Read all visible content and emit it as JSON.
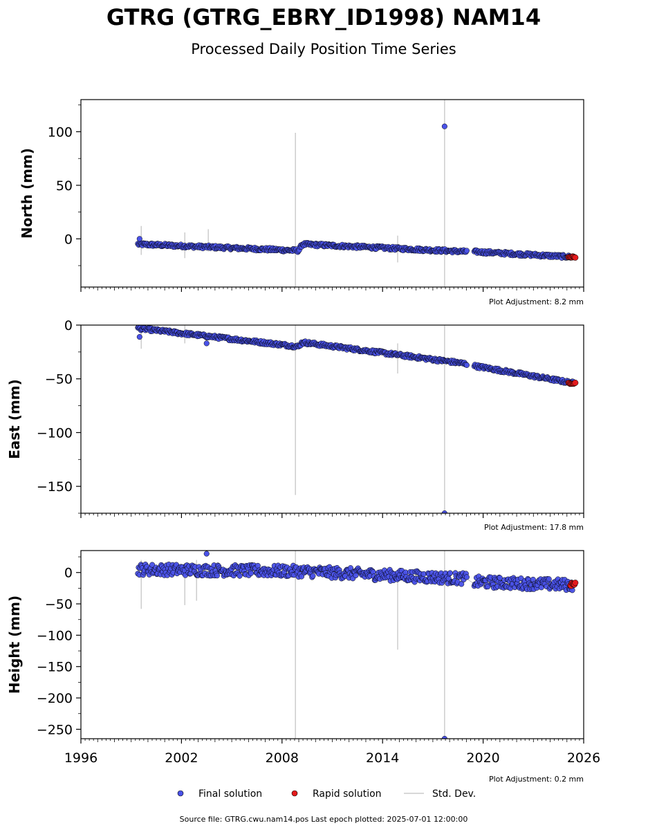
{
  "title": "GTRG (GTRG_EBRY_ID1998) NAM14",
  "subtitle": "Processed Daily Position Time Series",
  "source_text": "Source file: GTRG.cwu.nam14.pos  Last epoch plotted: 2025-07-01 12:00:00",
  "colors": {
    "final": "#4a52e8",
    "rapid": "#e41a1c",
    "stddev": "#cccccc",
    "marker_edge": "#000000"
  },
  "legend": {
    "position": "bottom-center",
    "items": [
      {
        "label": "Final solution",
        "color": "#4a52e8",
        "kind": "dot"
      },
      {
        "label": "Rapid solution",
        "color": "#e41a1c",
        "kind": "dot"
      },
      {
        "label": "Std. Dev.",
        "color": "#cccccc",
        "kind": "line"
      }
    ]
  },
  "chart_data": [
    {
      "type": "scatter",
      "ylabel": "North (mm)",
      "adjustment": "Plot Adjustment: 8.2 mm",
      "xlim": [
        1996,
        2026
      ],
      "ylim": [
        -45,
        130
      ],
      "yticks": [
        100,
        50,
        0
      ],
      "ytick_labels": [
        "100",
        "50",
        "0"
      ],
      "xtick_labels_shown": false,
      "final_trend": [
        [
          1999.4,
          -5
        ],
        [
          2009.0,
          -11
        ],
        [
          2009.2,
          -5
        ],
        [
          2019.0,
          -12
        ],
        [
          2019.5,
          -12
        ],
        [
          2025.4,
          -17
        ]
      ],
      "final_scatter": 1.5,
      "rapid_span": [
        2025.1,
        2025.5
      ],
      "rapid_value": -17,
      "outliers": [
        {
          "x": 1999.5,
          "y": 0
        },
        {
          "x": 2017.7,
          "y": 105
        }
      ],
      "stddev_bars": [
        {
          "x": 1999.6,
          "lo": -15,
          "hi": 12
        },
        {
          "x": 2002.2,
          "lo": -18,
          "hi": 6
        },
        {
          "x": 2003.6,
          "lo": -12,
          "hi": 9
        },
        {
          "x": 2008.8,
          "lo": -45,
          "hi": 99
        },
        {
          "x": 2014.9,
          "lo": -22,
          "hi": 3
        },
        {
          "x": 2017.7,
          "lo": -45,
          "hi": 130
        }
      ]
    },
    {
      "type": "scatter",
      "ylabel": "East (mm)",
      "adjustment": "Plot Adjustment: 17.8 mm",
      "xlim": [
        1996,
        2026
      ],
      "ylim": [
        -175,
        0
      ],
      "yticks": [
        0,
        -50,
        -100,
        -150
      ],
      "ytick_labels": [
        "0",
        "−50",
        "−100",
        "−150"
      ],
      "xtick_labels_shown": false,
      "final_trend": [
        [
          1999.4,
          -3
        ],
        [
          2009.0,
          -20
        ],
        [
          2009.2,
          -16
        ],
        [
          2019.0,
          -36
        ],
        [
          2019.5,
          -38
        ],
        [
          2025.4,
          -54
        ]
      ],
      "final_scatter": 1.5,
      "rapid_span": [
        2025.1,
        2025.5
      ],
      "rapid_value": -54,
      "outliers": [
        {
          "x": 1999.5,
          "y": -11
        },
        {
          "x": 2003.5,
          "y": -17
        },
        {
          "x": 2017.7,
          "y": -175
        }
      ],
      "stddev_bars": [
        {
          "x": 1999.6,
          "lo": -22,
          "hi": 0
        },
        {
          "x": 2002.2,
          "lo": -17,
          "hi": 0
        },
        {
          "x": 2008.8,
          "lo": -158,
          "hi": 0
        },
        {
          "x": 2014.9,
          "lo": -45,
          "hi": -17
        },
        {
          "x": 2017.7,
          "lo": -175,
          "hi": 0
        }
      ]
    },
    {
      "type": "scatter",
      "ylabel": "Height (mm)",
      "adjustment": "Plot Adjustment: 0.2 mm",
      "xlim": [
        1996,
        2026
      ],
      "ylim": [
        -265,
        35
      ],
      "yticks": [
        0,
        -50,
        -100,
        -150,
        -200,
        -250
      ],
      "ytick_labels": [
        "0",
        "−50",
        "−100",
        "−150",
        "−200",
        "−250"
      ],
      "xtick_labels_shown": true,
      "xticks": [
        1996,
        2002,
        2008,
        2014,
        2020,
        2026
      ],
      "xtick_labels": [
        "1996",
        "2002",
        "2008",
        "2014",
        "2020",
        "2026"
      ],
      "final_trend": [
        [
          1999.4,
          5
        ],
        [
          2009.0,
          2
        ],
        [
          2009.2,
          2
        ],
        [
          2019.0,
          -10
        ],
        [
          2019.5,
          -15
        ],
        [
          2025.4,
          -20
        ]
      ],
      "final_scatter": 9,
      "rapid_span": [
        2025.2,
        2025.5
      ],
      "rapid_value": -20,
      "outliers": [
        {
          "x": 2003.5,
          "y": 30
        },
        {
          "x": 2017.7,
          "y": -265
        }
      ],
      "stddev_bars": [
        {
          "x": 1999.6,
          "lo": -58,
          "hi": 20
        },
        {
          "x": 2002.2,
          "lo": -52,
          "hi": 15
        },
        {
          "x": 2002.9,
          "lo": -45,
          "hi": 20
        },
        {
          "x": 2008.8,
          "lo": -265,
          "hi": 35
        },
        {
          "x": 2014.9,
          "lo": -123,
          "hi": 5
        },
        {
          "x": 2017.7,
          "lo": -265,
          "hi": 35
        }
      ]
    }
  ]
}
